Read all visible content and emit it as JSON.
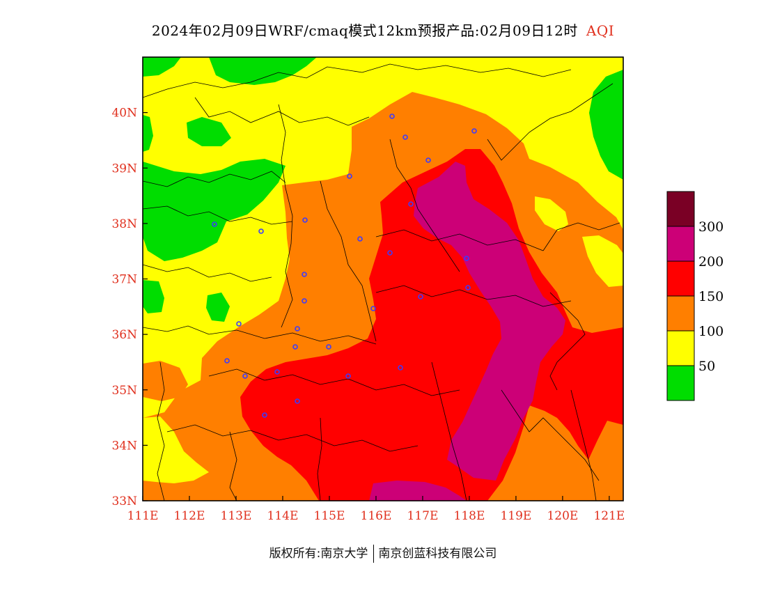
{
  "title": {
    "text": "2024年02月09日WRF/cmaq模式12km预报产品:02月09日12时",
    "variable": "AQI"
  },
  "footer": {
    "left": "版权所有:南京大学",
    "right": "南京创蓝科技有限公司"
  },
  "map": {
    "lon_range": [
      111,
      121.3
    ],
    "lat_range": [
      33,
      41
    ],
    "x_ticks": [
      "111E",
      "112E",
      "113E",
      "114E",
      "115E",
      "116E",
      "117E",
      "118E",
      "119E",
      "120E",
      "121E"
    ],
    "y_ticks": [
      "33N",
      "34N",
      "35N",
      "36N",
      "37N",
      "38N",
      "39N",
      "40N"
    ],
    "station_count_shown": 27
  },
  "legend": {
    "levels": [
      {
        "label": "",
        "color": "#00dd00"
      },
      {
        "label": "50",
        "color": "#ffff00"
      },
      {
        "label": "100",
        "color": "#ff7f00"
      },
      {
        "label": "150",
        "color": "#ff0000"
      },
      {
        "label": "200",
        "color": "#cc0077"
      },
      {
        "label": "300",
        "color": "#7a0025"
      }
    ]
  },
  "colors": {
    "good": "#00dd00",
    "moderate": "#ffff00",
    "sensitive": "#ff7f00",
    "unhealthy": "#ff0000",
    "very_unhealthy": "#cc0077",
    "hazardous": "#7a0025",
    "axis_label": "#e0301e",
    "station": "#3b3bff"
  }
}
